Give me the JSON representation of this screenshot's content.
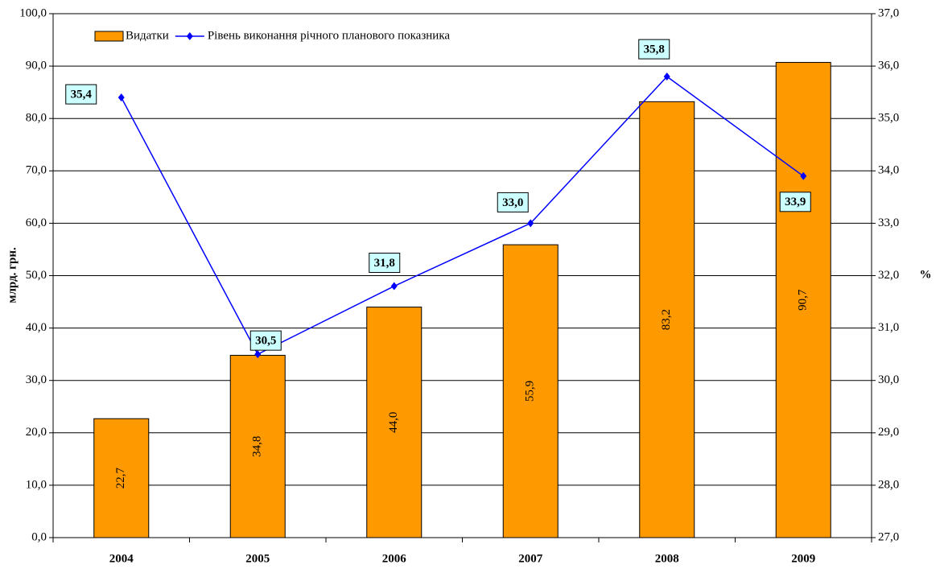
{
  "chart_data": {
    "type": "bar_line",
    "categories": [
      "2004",
      "2005",
      "2006",
      "2007",
      "2008",
      "2009"
    ],
    "series": [
      {
        "name": "Видатки",
        "color": "#ff9900",
        "type": "bar",
        "values": [
          22.7,
          34.8,
          44.0,
          55.9,
          83.2,
          90.7
        ],
        "value_labels": [
          "22,7",
          "34,8",
          "44,0",
          "55,9",
          "83,2",
          "90,7"
        ]
      },
      {
        "name": "Рівень виконання річного планового показника",
        "color": "#0000ff",
        "type": "line",
        "axis": "y2",
        "values": [
          35.4,
          30.5,
          31.8,
          33.0,
          35.8,
          33.9
        ],
        "value_labels": [
          "35,4",
          "30,5",
          "31,8",
          "33,0",
          "35,8",
          "33,9"
        ]
      }
    ],
    "y_label": "млрд. грн.",
    "y2_label": "%",
    "ylim": [
      0,
      100
    ],
    "yticks": [
      {
        "value": 0,
        "label": "0,0"
      },
      {
        "value": 10,
        "label": "10,0"
      },
      {
        "value": 20,
        "label": "20,0"
      },
      {
        "value": 30,
        "label": "30,0"
      },
      {
        "value": 40,
        "label": "40,0"
      },
      {
        "value": 50,
        "label": "50,0"
      },
      {
        "value": 60,
        "label": "60,0"
      },
      {
        "value": 70,
        "label": "70,0"
      },
      {
        "value": 80,
        "label": "80,0"
      },
      {
        "value": 90,
        "label": "90,0"
      },
      {
        "value": 100,
        "label": "100,0"
      }
    ],
    "y2lim": [
      27,
      37
    ],
    "y2ticks": [
      {
        "value": 27,
        "label": "27,0"
      },
      {
        "value": 28,
        "label": "28,0"
      },
      {
        "value": 29,
        "label": "29,0"
      },
      {
        "value": 30,
        "label": "30,0"
      },
      {
        "value": 31,
        "label": "31,0"
      },
      {
        "value": 32,
        "label": "32,0"
      },
      {
        "value": 33,
        "label": "33,0"
      },
      {
        "value": 34,
        "label": "34,0"
      },
      {
        "value": 35,
        "label": "35,0"
      },
      {
        "value": 36,
        "label": "36,0"
      },
      {
        "value": 37,
        "label": "37,0"
      }
    ],
    "grid": true,
    "legend": "top-left"
  }
}
